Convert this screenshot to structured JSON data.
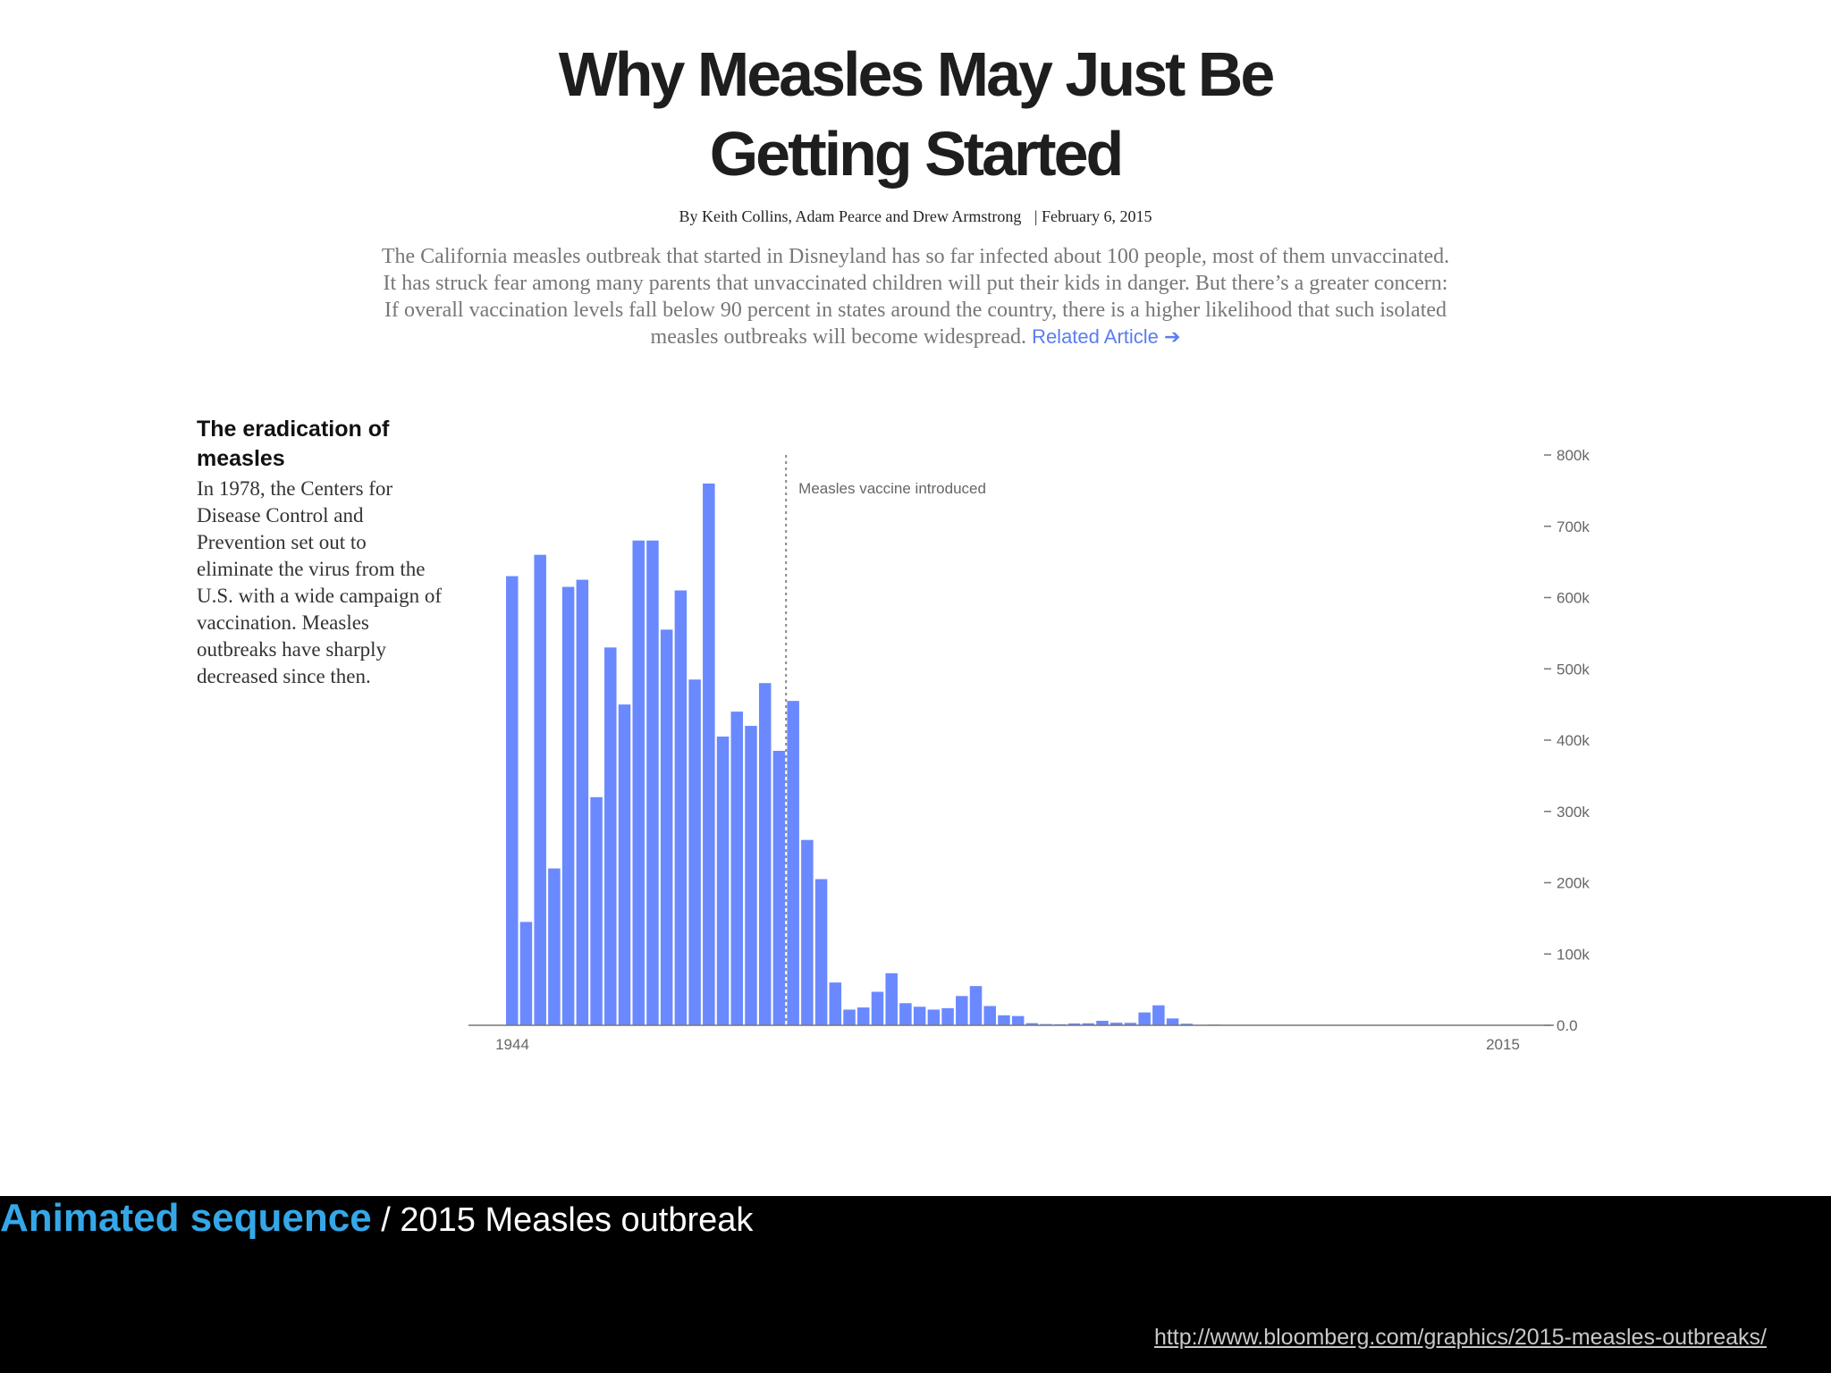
{
  "article": {
    "headline_line1": "Why Measles May Just Be",
    "headline_line2": "Getting Started",
    "byline_authors": "By Keith Collins, Adam Pearce and Drew Armstrong",
    "byline_date": "| February 6, 2015",
    "dek": "The California measles outbreak that started in Disneyland has so far infected about 100 people, most of them unvaccinated. It has struck fear among many parents that unvaccinated children will put their kids in danger. But there’s a greater concern: If overall vaccination levels fall below 90 percent in states around the country, there is a higher likelihood that such isolated measles outbreaks will become widespread.",
    "related_link": "Related Article ➔"
  },
  "sidebar": {
    "title": "The eradication of measles",
    "body": "In 1978, the Centers for Disease Control and Prevention set out to eliminate the virus from the U.S. with a wide campaign of vaccination. Measles outbreaks have sharply decreased since then."
  },
  "chart_data": {
    "type": "bar",
    "title": "",
    "xlabel": "",
    "ylabel": "",
    "ylim": [
      0,
      800000
    ],
    "yticks": [
      "0.0",
      "100k",
      "200k",
      "300k",
      "400k",
      "500k",
      "600k",
      "700k",
      "800k"
    ],
    "xtick_labels": [
      "1944",
      "2015"
    ],
    "bar_color": "#6a89ff",
    "grid": false,
    "annotation": {
      "label": "Measles vaccine introduced",
      "year": 1963
    },
    "x": [
      1944,
      1945,
      1946,
      1947,
      1948,
      1949,
      1950,
      1951,
      1952,
      1953,
      1954,
      1955,
      1956,
      1957,
      1958,
      1959,
      1960,
      1961,
      1962,
      1963,
      1964,
      1965,
      1966,
      1967,
      1968,
      1969,
      1970,
      1971,
      1972,
      1973,
      1974,
      1975,
      1976,
      1977,
      1978,
      1979,
      1980,
      1981,
      1982,
      1983,
      1984,
      1985,
      1986,
      1987,
      1988,
      1989,
      1990,
      1991,
      1992,
      1993,
      1994,
      1995,
      1996,
      1997,
      1998,
      1999,
      2000,
      2001,
      2002,
      2003,
      2004,
      2005,
      2006,
      2007,
      2008,
      2009,
      2010,
      2011,
      2012,
      2013,
      2014,
      2015
    ],
    "values": [
      630000,
      145000,
      660000,
      220000,
      615000,
      625000,
      320000,
      530000,
      450000,
      680000,
      680000,
      555000,
      610000,
      485000,
      760000,
      405000,
      440000,
      420000,
      480000,
      385000,
      455000,
      260000,
      205000,
      60000,
      22000,
      25000,
      47000,
      73000,
      31000,
      26000,
      22000,
      24000,
      41000,
      55000,
      27000,
      14000,
      13000,
      3000,
      1700,
      1500,
      2600,
      2800,
      6300,
      3600,
      3400,
      18000,
      28000,
      9600,
      2200,
      300,
      960,
      300,
      500,
      140,
      100,
      100,
      90,
      120,
      40,
      60,
      40,
      70,
      60,
      45,
      140,
      70,
      60,
      220,
      55,
      190,
      670,
      190
    ]
  },
  "footer": {
    "accent": "Animated sequence",
    "rest": " / 2015 Measles outbreak",
    "url": "http://www.bloomberg.com/graphics/2015-measles-outbreaks/"
  }
}
